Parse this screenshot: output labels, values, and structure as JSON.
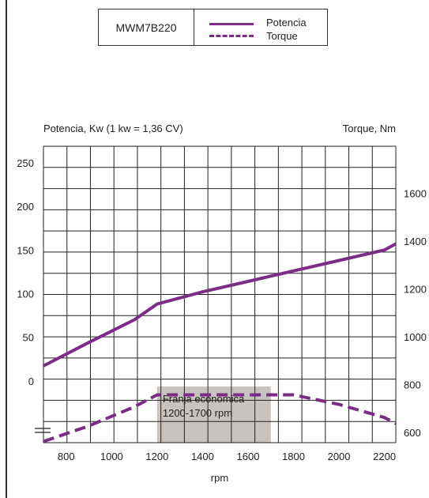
{
  "legend": {
    "model": "MWM7B220",
    "potencia_label": "Potencia",
    "torque_label": "Torque"
  },
  "colors": {
    "series": "#7b2d86",
    "band": "#c9c3bf",
    "grid": "#222222"
  },
  "chart_data": {
    "type": "line",
    "left_axis_label": "Potencia, Kw (1 kw = 1,36 CV)",
    "right_axis_label": "Torque, Nm",
    "xlabel": "rpm",
    "x_ticks": [
      800,
      1000,
      1200,
      1400,
      1600,
      1800,
      2000,
      2200
    ],
    "left_ticks": [
      0,
      50,
      100,
      150,
      200,
      250
    ],
    "right_ticks": [
      600,
      800,
      1000,
      1200,
      1400,
      1600
    ],
    "x_range": [
      700,
      2250
    ],
    "left_range": [
      -70,
      270
    ],
    "right_range": [
      560,
      1800
    ],
    "series": [
      {
        "name": "Potencia",
        "axis": "left",
        "style": "solid",
        "x": [
          700,
          900,
          1100,
          1200,
          1400,
          1600,
          1800,
          2000,
          2200,
          2250
        ],
        "y": [
          18,
          45,
          71,
          89,
          103,
          115,
          127,
          139,
          151,
          158
        ]
      },
      {
        "name": "Torque",
        "axis": "right",
        "style": "dashed",
        "x": [
          700,
          900,
          1100,
          1200,
          1400,
          1600,
          1800,
          2000,
          2200,
          2250
        ],
        "y": [
          565,
          630,
          710,
          760,
          760,
          760,
          760,
          720,
          665,
          640
        ]
      }
    ],
    "annotation": {
      "line1": "Franja económica",
      "line2": "1200-1700 rpm",
      "x_start": 1200,
      "x_end": 1700
    },
    "grid": true
  }
}
